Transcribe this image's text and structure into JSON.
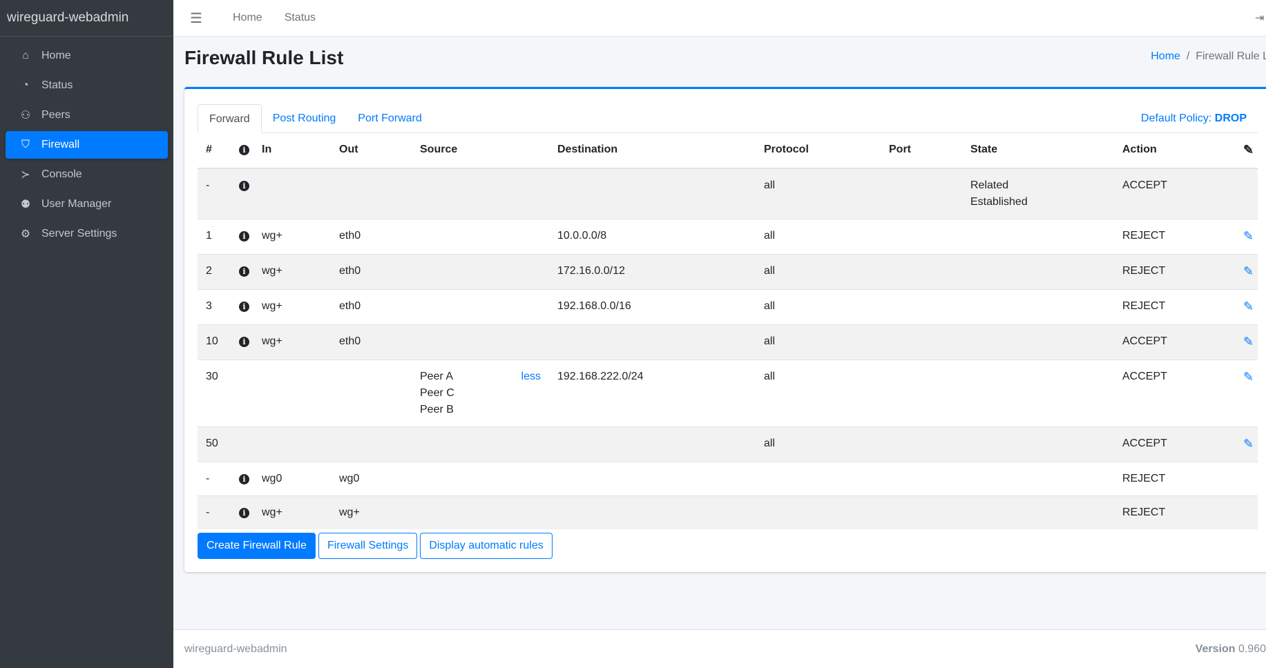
{
  "app": {
    "title": "wireguard-webadmin"
  },
  "sidebar": {
    "items": [
      {
        "label": "Home",
        "icon": "home-icon",
        "glyph": "⌂"
      },
      {
        "label": "Status",
        "icon": "tachometer-icon",
        "glyph": "◔"
      },
      {
        "label": "Peers",
        "icon": "users-cog-icon",
        "glyph": "⚇"
      },
      {
        "label": "Firewall",
        "icon": "shield-icon",
        "glyph": "⛉",
        "active": true
      },
      {
        "label": "Console",
        "icon": "terminal-icon",
        "glyph": "≻"
      },
      {
        "label": "User Manager",
        "icon": "users-icon",
        "glyph": "⚉"
      },
      {
        "label": "Server Settings",
        "icon": "cogs-icon",
        "glyph": "⚙"
      }
    ]
  },
  "topbar": {
    "menu_icon": "☰",
    "links": [
      "Home",
      "Status"
    ],
    "logout_icon": "⇥"
  },
  "page": {
    "title": "Firewall Rule List",
    "breadcrumb": {
      "home": "Home",
      "current": "Firewall Rule List"
    }
  },
  "tabs": [
    {
      "label": "Forward",
      "active": true
    },
    {
      "label": "Post Routing"
    },
    {
      "label": "Port Forward"
    }
  ],
  "policy": {
    "label": "Default Policy:",
    "value": "DROP"
  },
  "table": {
    "headers": [
      "#",
      "",
      "In",
      "Out",
      "Source",
      "Destination",
      "Protocol",
      "Port",
      "State",
      "Action",
      ""
    ],
    "rows": [
      {
        "num": "-",
        "info": true,
        "in": "",
        "out": "",
        "source": [],
        "less": "",
        "dest": "",
        "proto": "all",
        "port": "",
        "state": [
          "Related",
          "Established"
        ],
        "action": "ACCEPT",
        "edit": false
      },
      {
        "num": "1",
        "info": true,
        "in": "wg+",
        "out": "eth0",
        "source": [],
        "less": "",
        "dest": "10.0.0.0/8",
        "proto": "all",
        "port": "",
        "state": [],
        "action": "REJECT",
        "edit": true
      },
      {
        "num": "2",
        "info": true,
        "in": "wg+",
        "out": "eth0",
        "source": [],
        "less": "",
        "dest": "172.16.0.0/12",
        "proto": "all",
        "port": "",
        "state": [],
        "action": "REJECT",
        "edit": true
      },
      {
        "num": "3",
        "info": true,
        "in": "wg+",
        "out": "eth0",
        "source": [],
        "less": "",
        "dest": "192.168.0.0/16",
        "proto": "all",
        "port": "",
        "state": [],
        "action": "REJECT",
        "edit": true
      },
      {
        "num": "10",
        "info": true,
        "in": "wg+",
        "out": "eth0",
        "source": [],
        "less": "",
        "dest": "",
        "proto": "all",
        "port": "",
        "state": [],
        "action": "ACCEPT",
        "edit": true
      },
      {
        "num": "30",
        "info": false,
        "in": "",
        "out": "",
        "source": [
          "Peer A",
          "Peer C",
          "Peer B"
        ],
        "less": "less",
        "dest": "192.168.222.0/24",
        "proto": "all",
        "port": "",
        "state": [],
        "action": "ACCEPT",
        "edit": true
      },
      {
        "num": "50",
        "info": false,
        "in": "",
        "out": "",
        "source": [],
        "less": "",
        "dest": "",
        "proto": "all",
        "port": "",
        "state": [],
        "action": "ACCEPT",
        "edit": true
      },
      {
        "num": "-",
        "info": true,
        "in": "wg0",
        "out": "wg0",
        "source": [],
        "less": "",
        "dest": "",
        "proto": "",
        "port": "",
        "state": [],
        "action": "REJECT",
        "edit": false
      },
      {
        "num": "-",
        "info": true,
        "in": "wg+",
        "out": "wg+",
        "source": [],
        "less": "",
        "dest": "",
        "proto": "",
        "port": "",
        "state": [],
        "action": "REJECT",
        "edit": false
      }
    ]
  },
  "buttons": {
    "create": "Create Firewall Rule",
    "settings": "Firewall Settings",
    "auto": "Display automatic rules"
  },
  "footer": {
    "left": "wireguard-webadmin",
    "version_label": "Version",
    "version": "0.960"
  },
  "colors": {
    "accent": "#007bff",
    "sidebar": "#343a40"
  }
}
